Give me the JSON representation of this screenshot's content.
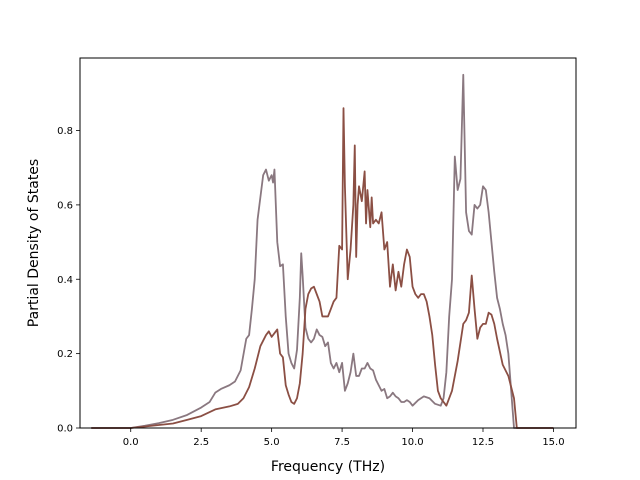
{
  "chart_data": {
    "type": "line",
    "xlabel": "Frequency (THz)",
    "ylabel": "Partial Density of States",
    "xlim": [
      -1.8,
      15.8
    ],
    "ylim": [
      0,
      0.995
    ],
    "xticks": [
      0.0,
      2.5,
      5.0,
      7.5,
      10.0,
      12.5,
      15.0
    ],
    "xtick_labels": [
      "0.0",
      "2.5",
      "5.0",
      "7.5",
      "10.0",
      "12.5",
      "15.0"
    ],
    "yticks": [
      0.0,
      0.2,
      0.4,
      0.6,
      0.8
    ],
    "ytick_labels": [
      "0.0",
      "0.2",
      "0.4",
      "0.6",
      "0.8"
    ],
    "grid": false,
    "legend": "none",
    "series": [
      {
        "color": "#8a7880",
        "x": [
          -1.4,
          0.0,
          0.5,
          1.0,
          1.5,
          2.0,
          2.5,
          2.8,
          3.0,
          3.2,
          3.5,
          3.7,
          3.9,
          4.1,
          4.2,
          4.3,
          4.4,
          4.5,
          4.6,
          4.7,
          4.8,
          4.9,
          5.0,
          5.05,
          5.1,
          5.2,
          5.3,
          5.4,
          5.5,
          5.6,
          5.7,
          5.8,
          5.9,
          6.0,
          6.05,
          6.1,
          6.2,
          6.3,
          6.4,
          6.5,
          6.6,
          6.7,
          6.8,
          6.9,
          7.0,
          7.1,
          7.2,
          7.3,
          7.4,
          7.5,
          7.6,
          7.7,
          7.8,
          7.9,
          8.0,
          8.1,
          8.2,
          8.3,
          8.4,
          8.5,
          8.6,
          8.7,
          8.8,
          8.9,
          9.0,
          9.1,
          9.2,
          9.3,
          9.4,
          9.5,
          9.6,
          9.7,
          9.8,
          9.9,
          10.0,
          10.2,
          10.4,
          10.6,
          10.8,
          11.0,
          11.1,
          11.2,
          11.3,
          11.4,
          11.5,
          11.6,
          11.7,
          11.8,
          11.9,
          12.0,
          12.1,
          12.2,
          12.3,
          12.4,
          12.5,
          12.6,
          12.7,
          12.8,
          12.9,
          13.0,
          13.1,
          13.2,
          13.3,
          13.4,
          13.5,
          13.6,
          13.7,
          13.8,
          15.0
        ],
        "y": [
          0.0,
          0.0,
          0.006,
          0.013,
          0.022,
          0.035,
          0.055,
          0.07,
          0.095,
          0.105,
          0.115,
          0.125,
          0.155,
          0.24,
          0.25,
          0.32,
          0.4,
          0.56,
          0.62,
          0.68,
          0.695,
          0.665,
          0.68,
          0.66,
          0.695,
          0.5,
          0.435,
          0.44,
          0.3,
          0.2,
          0.175,
          0.16,
          0.21,
          0.35,
          0.47,
          0.41,
          0.27,
          0.24,
          0.23,
          0.24,
          0.265,
          0.25,
          0.245,
          0.22,
          0.23,
          0.175,
          0.16,
          0.175,
          0.15,
          0.175,
          0.1,
          0.12,
          0.15,
          0.2,
          0.14,
          0.14,
          0.16,
          0.16,
          0.175,
          0.16,
          0.155,
          0.13,
          0.115,
          0.1,
          0.105,
          0.08,
          0.085,
          0.095,
          0.085,
          0.08,
          0.07,
          0.07,
          0.075,
          0.07,
          0.06,
          0.075,
          0.085,
          0.08,
          0.065,
          0.06,
          0.08,
          0.15,
          0.3,
          0.4,
          0.73,
          0.64,
          0.67,
          0.95,
          0.58,
          0.53,
          0.52,
          0.6,
          0.59,
          0.6,
          0.65,
          0.64,
          0.58,
          0.5,
          0.42,
          0.35,
          0.32,
          0.28,
          0.25,
          0.2,
          0.1,
          0.0,
          0.0,
          0.0,
          0.0
        ]
      },
      {
        "color": "#8b4f44",
        "x": [
          -1.4,
          0.0,
          0.5,
          1.0,
          1.5,
          2.0,
          2.5,
          3.0,
          3.5,
          3.8,
          4.0,
          4.2,
          4.4,
          4.6,
          4.8,
          4.9,
          5.0,
          5.1,
          5.2,
          5.3,
          5.4,
          5.5,
          5.6,
          5.7,
          5.8,
          5.9,
          6.0,
          6.1,
          6.2,
          6.3,
          6.4,
          6.5,
          6.6,
          6.7,
          6.8,
          6.9,
          7.0,
          7.1,
          7.2,
          7.3,
          7.4,
          7.5,
          7.55,
          7.6,
          7.7,
          7.8,
          7.9,
          7.95,
          8.0,
          8.05,
          8.1,
          8.2,
          8.3,
          8.35,
          8.4,
          8.5,
          8.55,
          8.6,
          8.7,
          8.8,
          8.9,
          9.0,
          9.1,
          9.2,
          9.3,
          9.4,
          9.5,
          9.6,
          9.7,
          9.8,
          9.9,
          10.0,
          10.1,
          10.2,
          10.3,
          10.4,
          10.5,
          10.6,
          10.7,
          10.8,
          10.9,
          11.0,
          11.2,
          11.4,
          11.6,
          11.8,
          11.9,
          12.0,
          12.1,
          12.2,
          12.3,
          12.4,
          12.5,
          12.6,
          12.7,
          12.8,
          12.9,
          13.0,
          13.2,
          13.4,
          13.6,
          13.7,
          13.8,
          15.0
        ],
        "y": [
          0.0,
          0.0,
          0.004,
          0.008,
          0.012,
          0.022,
          0.032,
          0.05,
          0.058,
          0.065,
          0.08,
          0.11,
          0.16,
          0.22,
          0.25,
          0.26,
          0.245,
          0.255,
          0.265,
          0.2,
          0.19,
          0.115,
          0.09,
          0.07,
          0.065,
          0.08,
          0.12,
          0.2,
          0.32,
          0.36,
          0.375,
          0.38,
          0.36,
          0.34,
          0.3,
          0.3,
          0.3,
          0.32,
          0.34,
          0.35,
          0.49,
          0.48,
          0.86,
          0.65,
          0.4,
          0.48,
          0.6,
          0.76,
          0.46,
          0.6,
          0.65,
          0.61,
          0.69,
          0.55,
          0.64,
          0.54,
          0.62,
          0.55,
          0.56,
          0.55,
          0.58,
          0.48,
          0.5,
          0.38,
          0.44,
          0.37,
          0.42,
          0.38,
          0.44,
          0.48,
          0.46,
          0.38,
          0.36,
          0.35,
          0.36,
          0.36,
          0.34,
          0.3,
          0.25,
          0.17,
          0.1,
          0.08,
          0.06,
          0.1,
          0.18,
          0.28,
          0.29,
          0.31,
          0.41,
          0.32,
          0.24,
          0.27,
          0.28,
          0.28,
          0.31,
          0.305,
          0.28,
          0.24,
          0.17,
          0.14,
          0.08,
          0.0,
          0.0,
          0.0
        ]
      }
    ]
  }
}
